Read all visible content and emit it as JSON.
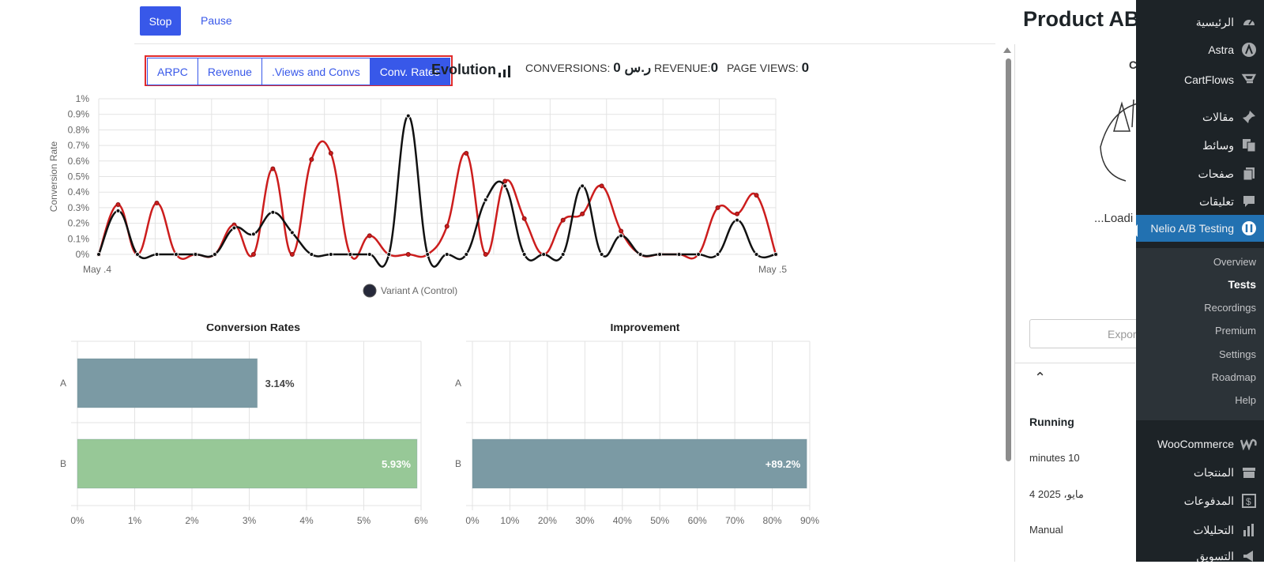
{
  "page": {
    "title": "Product AB"
  },
  "toolbar": {
    "stop_label": "Stop",
    "pause_label": "Pause"
  },
  "tabs": [
    {
      "label": "ARPC",
      "active": false
    },
    {
      "label": "Revenue",
      "active": false
    },
    {
      "label": ".Views and Convs",
      "active": false
    },
    {
      "label": "Conv. Rates",
      "active": true
    }
  ],
  "evolution": {
    "title": "Evolution"
  },
  "metrics": {
    "conversions_label": "CONVERSIONS:",
    "conversions_value": "0 ر.س",
    "revenue_label": "REVENUE:",
    "revenue_value": "0",
    "page_views_label": "PAGE VIEWS:",
    "page_views_value": "0"
  },
  "chart_data": [
    {
      "type": "line",
      "ylabel": "Conversion Rate",
      "xlabel": "",
      "x_tick_labels": [
        "May .4",
        "May .5"
      ],
      "y_tick_labels": [
        "0%",
        "0.1%",
        "0.2%",
        "0.3%",
        "0.4%",
        "0.5%",
        "0.6%",
        "0.7%",
        "0.8%",
        "0.9%",
        "1%"
      ],
      "ylim": [
        0,
        1
      ],
      "legend": "bottom",
      "grid": true,
      "series": [
        {
          "name": "",
          "color": "#cc1d1d",
          "values": [
            0,
            0.32,
            0,
            0.33,
            0,
            0,
            0,
            0.19,
            0,
            0.55,
            0,
            0.61,
            0.65,
            0,
            0.12,
            0,
            0,
            0,
            0.18,
            0.65,
            0,
            0.47,
            0.23,
            0,
            0.22,
            0.26,
            0.44,
            0.15,
            0,
            0,
            0,
            0,
            0.3,
            0.26,
            0.38,
            0
          ]
        },
        {
          "name": "Variant A (Control)",
          "color": "#111111",
          "values": [
            0,
            0.28,
            0,
            0,
            0,
            0,
            0,
            0.17,
            0.13,
            0.27,
            0.14,
            0,
            0,
            0,
            0,
            0,
            0.89,
            0,
            0,
            0,
            0.35,
            0.44,
            0,
            0,
            0,
            0.44,
            0,
            0.12,
            0,
            0,
            0,
            0,
            0,
            0.22,
            0,
            0
          ]
        }
      ]
    },
    {
      "type": "bar",
      "title": "Conversion Rates",
      "orientation": "horizontal",
      "categories": [
        "A",
        "B"
      ],
      "values": [
        3.14,
        5.93
      ],
      "data_labels": [
        "3.14%",
        "5.93%"
      ],
      "colors": [
        "#7b9aa4",
        "#97c897"
      ],
      "xlim": [
        0,
        6
      ],
      "x_tick_labels": [
        "0%",
        "1%",
        "2%",
        "3%",
        "4%",
        "5%",
        "6%"
      ]
    },
    {
      "type": "bar",
      "title": "Improvement",
      "orientation": "horizontal",
      "categories": [
        "A",
        "B"
      ],
      "values": [
        0,
        89.2
      ],
      "data_labels": [
        "",
        "+89.2%"
      ],
      "colors": [
        "#7b9aa4",
        "#7b9aa4"
      ],
      "xlim": [
        0,
        90
      ],
      "x_tick_labels": [
        "0%",
        "10%",
        "20%",
        "30%",
        "40%",
        "50%",
        "60%",
        "70%",
        "80%",
        "90%"
      ]
    }
  ],
  "right_panel": {
    "partial_letter": "C",
    "loading": "...Loadi",
    "export_label": "Expor",
    "status": "Running",
    "duration": "minutes 10",
    "date": "4 مايو، 2025",
    "mode": "Manual"
  },
  "sidebar": {
    "items": [
      {
        "label": "الرئيسية",
        "icon": "dashboard-icon"
      },
      {
        "label": "Astra",
        "icon": "astra-icon"
      },
      {
        "label": "CartFlows",
        "icon": "cartflows-icon"
      },
      {
        "label": "مقالات",
        "icon": "pin-icon"
      },
      {
        "label": "وسائط",
        "icon": "media-icon"
      },
      {
        "label": "صفحات",
        "icon": "pages-icon"
      },
      {
        "label": "تعليقات",
        "icon": "comments-icon"
      },
      {
        "label": "Nelio A/B Testing",
        "icon": "nelio-icon"
      },
      {
        "label": "WooCommerce",
        "icon": "woo-icon"
      },
      {
        "label": "المنتجات",
        "icon": "products-icon"
      },
      {
        "label": "المدفوعات",
        "icon": "payments-icon"
      },
      {
        "label": "التحليلات",
        "icon": "analytics-icon"
      },
      {
        "label": "التسويق",
        "icon": "marketing-icon"
      }
    ],
    "submenu": [
      "Overview",
      "Tests",
      "Recordings",
      "Premium",
      "Settings",
      "Roadmap",
      "Help"
    ]
  }
}
